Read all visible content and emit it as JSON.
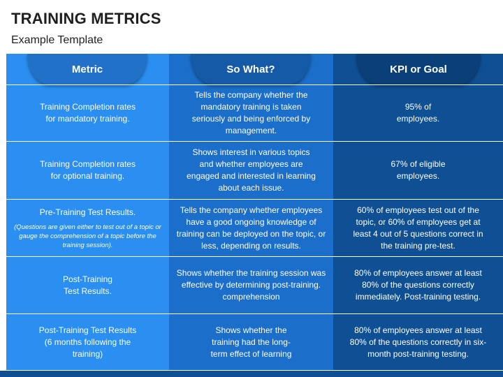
{
  "header": {
    "title": "TRAINING METRICS",
    "subtitle": "Example Template"
  },
  "table": {
    "columns": [
      "Metric",
      "So What?",
      "KPI or Goal"
    ],
    "rows": [
      {
        "metric": "Training Completion rates for mandatory training.",
        "so_what": "Tells the company whether the mandatory training is taken seriously and being enforced by management.",
        "kpi": "95% of employees."
      },
      {
        "metric": "Training Completion rates for optional training.",
        "so_what": "Shows interest in various topics and whether employees are engaged and interested in learning about each issue.",
        "kpi": "67% of eligible employees."
      },
      {
        "metric": "Pre-Training Test Results.",
        "note": "(Questions are given either to test out of a topic or gauge the comprehension of a topic before the training session).",
        "so_what": "Tells the company whether employees have a good ongoing knowledge of training can be deployed on the topic, or less, depending on results.",
        "kpi": "60% of employees test out of the topic, or 60% of employees get at least 4 out of 5 questions correct in the training pre-test."
      },
      {
        "metric": "Post-Training Test Results.",
        "so_what": "Shows whether the training session was effective by determining post-training. comprehension",
        "kpi": "80% of employees answer at least 80%  of the questions correctly immediately. Post-training testing."
      },
      {
        "metric": "Post-Training Test Results (6 months following the training)",
        "so_what": "Shows whether the training had the long-term effect of learning",
        "kpi": "80% of employees answer at least 80% of the questions correctly in six-month post-training testing."
      }
    ]
  },
  "colors": {
    "col_metric": "#2a8ff0",
    "col_sowhat": "#1b6ec9",
    "col_kpi": "#0f4f93"
  }
}
